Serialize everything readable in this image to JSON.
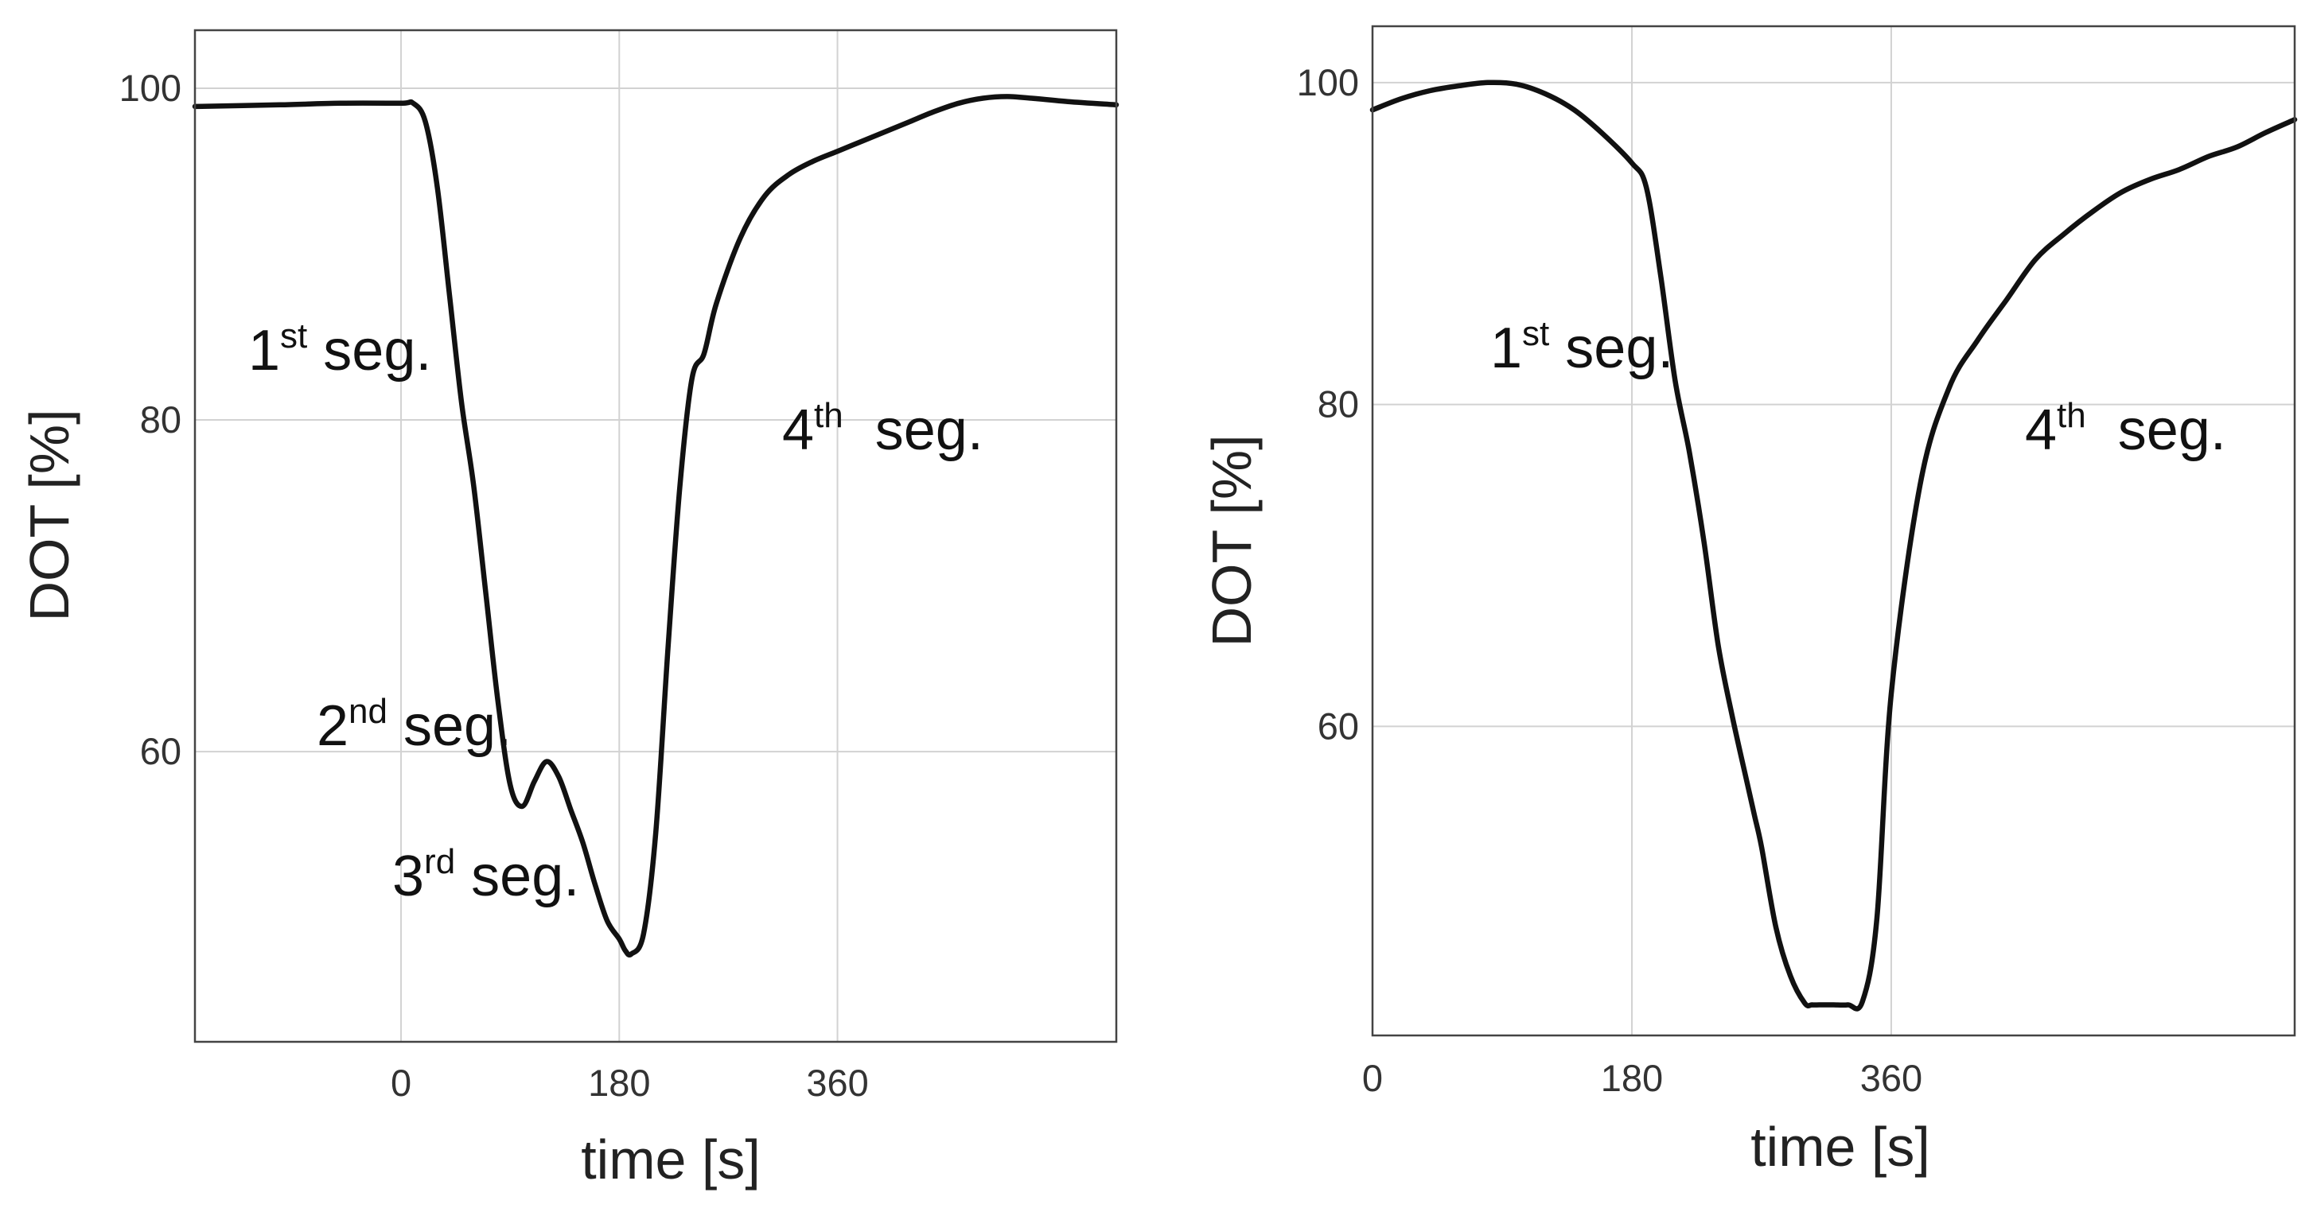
{
  "chart_data": [
    {
      "type": "line",
      "title": "",
      "xlabel": "time [s]",
      "ylabel": "DOT [%]",
      "xlim": [
        -170,
        590
      ],
      "ylim": [
        42.5,
        103.5
      ],
      "grid": true,
      "xticks": [
        0,
        180,
        360
      ],
      "xtick_labels": [
        "0",
        "180",
        "360"
      ],
      "yticks": [
        60,
        80,
        100
      ],
      "ytick_labels": [
        "60",
        "80",
        "100"
      ],
      "series": [
        {
          "name": "DOT",
          "x": [
            -170,
            -100,
            -50,
            0,
            10,
            20,
            30,
            40,
            50,
            60,
            70,
            80,
            90,
            100,
            110,
            120,
            130,
            140,
            150,
            160,
            170,
            180,
            185,
            190,
            200,
            210,
            220,
            230,
            240,
            250,
            260,
            280,
            300,
            320,
            340,
            360,
            380,
            400,
            420,
            440,
            460,
            480,
            500,
            520,
            550,
            590
          ],
          "y": [
            98.9,
            99.0,
            99.1,
            99.1,
            99.1,
            98.0,
            94.0,
            87.5,
            81.0,
            76.0,
            69.5,
            63.0,
            58.0,
            56.7,
            58.2,
            59.4,
            58.5,
            56.5,
            54.5,
            52.0,
            49.8,
            48.7,
            48.0,
            47.8,
            49.0,
            55.0,
            66.0,
            76.0,
            82.5,
            84.0,
            87.0,
            91.0,
            93.5,
            94.8,
            95.6,
            96.2,
            96.8,
            97.4,
            98.0,
            98.6,
            99.1,
            99.4,
            99.5,
            99.4,
            99.2,
            99.0
          ]
        }
      ],
      "annotations": [
        {
          "base": "1",
          "sup": "st",
          "tail": " seg."
        },
        {
          "base": "2",
          "sup": "nd",
          "tail": " seg."
        },
        {
          "base": "3",
          "sup": "rd",
          "tail": " seg."
        },
        {
          "base": "4",
          "sup": "th",
          "tail": "  seg."
        }
      ]
    },
    {
      "type": "line",
      "title": "",
      "xlabel": "time [s]",
      "ylabel": "DOT [%]",
      "xlim": [
        0,
        640
      ],
      "ylim": [
        40.8,
        103.5
      ],
      "grid": true,
      "xticks": [
        0,
        180,
        360
      ],
      "xtick_labels": [
        "0",
        "180",
        "360"
      ],
      "yticks": [
        60,
        80,
        100
      ],
      "ytick_labels": [
        "60",
        "80",
        "100"
      ],
      "series": [
        {
          "name": "DOT",
          "x": [
            0,
            20,
            40,
            60,
            80,
            100,
            120,
            140,
            160,
            180,
            190,
            200,
            210,
            220,
            230,
            240,
            250,
            260,
            265,
            270,
            280,
            290,
            300,
            305,
            310,
            315,
            320,
            330,
            340,
            350,
            360,
            380,
            400,
            420,
            440,
            460,
            480,
            500,
            520,
            540,
            560,
            580,
            600,
            620,
            640
          ],
          "y": [
            98.3,
            99.0,
            99.5,
            99.8,
            100.0,
            99.9,
            99.3,
            98.3,
            96.8,
            95.0,
            93.5,
            88.0,
            81.5,
            77.0,
            71.5,
            65.0,
            60.5,
            56.5,
            54.5,
            52.5,
            47.5,
            44.5,
            42.8,
            42.7,
            42.7,
            42.7,
            42.7,
            42.7,
            42.9,
            48.0,
            62.0,
            75.0,
            81.0,
            84.0,
            86.5,
            89.0,
            90.6,
            92.0,
            93.2,
            94.0,
            94.6,
            95.4,
            96.0,
            96.9,
            97.7
          ]
        }
      ],
      "annotations": [
        {
          "base": "1",
          "sup": "st",
          "tail": " seg."
        },
        {
          "base": "4",
          "sup": "th",
          "tail": "  seg."
        }
      ]
    }
  ]
}
